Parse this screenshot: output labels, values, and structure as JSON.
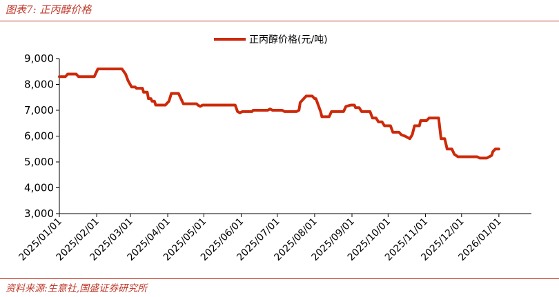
{
  "figure_caption": "图表7:  正丙醇价格",
  "source_note": "资料来源:生意社,国盛证券研究所",
  "chart_data": {
    "type": "line",
    "title": "",
    "xlabel": "",
    "ylabel": "",
    "ylim": [
      3000,
      9000
    ],
    "yticks": [
      "9,000",
      "8,000",
      "7,000",
      "6,000",
      "5,000",
      "4,000",
      "3,000"
    ],
    "ytick_values": [
      9000,
      8000,
      7000,
      6000,
      5000,
      4000,
      3000
    ],
    "xticks": [
      "2025/01/01",
      "2025/02/01",
      "2025/03/01",
      "2025/04/01",
      "2025/05/01",
      "2025/06/01",
      "2025/07/01",
      "2025/08/01",
      "2025/09/01",
      "2025/10/01",
      "2025/11/01",
      "2025/12/01",
      "2026/01/01"
    ],
    "xlim": [
      "2025/01/01",
      "2026/01/28"
    ],
    "legend_position": "top-center",
    "grid": false,
    "series": [
      {
        "name": "正丙醇价格(元/吨)",
        "color": "#cc2a0a",
        "points": [
          [
            "2025/01/01",
            8300
          ],
          [
            "2025/01/06",
            8300
          ],
          [
            "2025/01/08",
            8400
          ],
          [
            "2025/01/15",
            8400
          ],
          [
            "2025/01/17",
            8300
          ],
          [
            "2025/01/30",
            8300
          ],
          [
            "2025/02/02",
            8600
          ],
          [
            "2025/02/22",
            8600
          ],
          [
            "2025/02/25",
            8400
          ],
          [
            "2025/02/27",
            8150
          ],
          [
            "2025/03/02",
            7900
          ],
          [
            "2025/03/05",
            7900
          ],
          [
            "2025/03/06",
            7850
          ],
          [
            "2025/03/11",
            7850
          ],
          [
            "2025/03/12",
            7700
          ],
          [
            "2025/03/15",
            7700
          ],
          [
            "2025/03/16",
            7450
          ],
          [
            "2025/03/18",
            7450
          ],
          [
            "2025/03/19",
            7350
          ],
          [
            "2025/03/21",
            7350
          ],
          [
            "2025/03/22",
            7200
          ],
          [
            "2025/03/30",
            7200
          ],
          [
            "2025/04/02",
            7350
          ],
          [
            "2025/04/04",
            7650
          ],
          [
            "2025/04/10",
            7650
          ],
          [
            "2025/04/14",
            7250
          ],
          [
            "2025/04/25",
            7250
          ],
          [
            "2025/04/26",
            7200
          ],
          [
            "2025/04/28",
            7150
          ],
          [
            "2025/04/30",
            7200
          ],
          [
            "2025/05/27",
            7200
          ],
          [
            "2025/05/29",
            6950
          ],
          [
            "2025/05/31",
            6900
          ],
          [
            "2025/06/02",
            6950
          ],
          [
            "2025/06/10",
            6950
          ],
          [
            "2025/06/11",
            7000
          ],
          [
            "2025/06/23",
            7000
          ],
          [
            "2025/06/25",
            7050
          ],
          [
            "2025/06/27",
            7000
          ],
          [
            "2025/07/05",
            7000
          ],
          [
            "2025/07/07",
            6950
          ],
          [
            "2025/07/17",
            6950
          ],
          [
            "2025/07/19",
            7000
          ],
          [
            "2025/07/20",
            7300
          ],
          [
            "2025/07/23",
            7450
          ],
          [
            "2025/07/25",
            7550
          ],
          [
            "2025/07/30",
            7550
          ],
          [
            "2025/08/01",
            7450
          ],
          [
            "2025/08/02",
            7450
          ],
          [
            "2025/08/06",
            6950
          ],
          [
            "2025/08/07",
            6750
          ],
          [
            "2025/08/13",
            6750
          ],
          [
            "2025/08/15",
            6950
          ],
          [
            "2025/08/25",
            6950
          ],
          [
            "2025/08/27",
            7150
          ],
          [
            "2025/08/31",
            7200
          ],
          [
            "2025/09/03",
            7200
          ],
          [
            "2025/09/04",
            7100
          ],
          [
            "2025/09/07",
            7100
          ],
          [
            "2025/09/09",
            6950
          ],
          [
            "2025/09/16",
            6950
          ],
          [
            "2025/09/18",
            6700
          ],
          [
            "2025/09/21",
            6700
          ],
          [
            "2025/09/23",
            6550
          ],
          [
            "2025/09/26",
            6550
          ],
          [
            "2025/09/28",
            6400
          ],
          [
            "2025/10/03",
            6400
          ],
          [
            "2025/10/05",
            6150
          ],
          [
            "2025/10/10",
            6150
          ],
          [
            "2025/10/12",
            6050
          ],
          [
            "2025/10/15",
            6000
          ],
          [
            "2025/10/17",
            5950
          ],
          [
            "2025/10/19",
            5900
          ],
          [
            "2025/10/21",
            6050
          ],
          [
            "2025/10/23",
            6400
          ],
          [
            "2025/10/27",
            6400
          ],
          [
            "2025/10/28",
            6600
          ],
          [
            "2025/11/02",
            6600
          ],
          [
            "2025/11/04",
            6700
          ],
          [
            "2025/11/12",
            6700
          ],
          [
            "2025/11/14",
            5900
          ],
          [
            "2025/11/17",
            5900
          ],
          [
            "2025/11/19",
            5500
          ],
          [
            "2025/11/23",
            5500
          ],
          [
            "2025/11/25",
            5300
          ],
          [
            "2025/11/28",
            5200
          ],
          [
            "2025/12/14",
            5200
          ],
          [
            "2025/12/16",
            5150
          ],
          [
            "2025/12/22",
            5150
          ],
          [
            "2025/12/24",
            5200
          ],
          [
            "2025/12/26",
            5250
          ],
          [
            "2025/12/27",
            5400
          ],
          [
            "2025/12/29",
            5500
          ],
          [
            "2026/01/01",
            5500
          ]
        ]
      }
    ]
  }
}
